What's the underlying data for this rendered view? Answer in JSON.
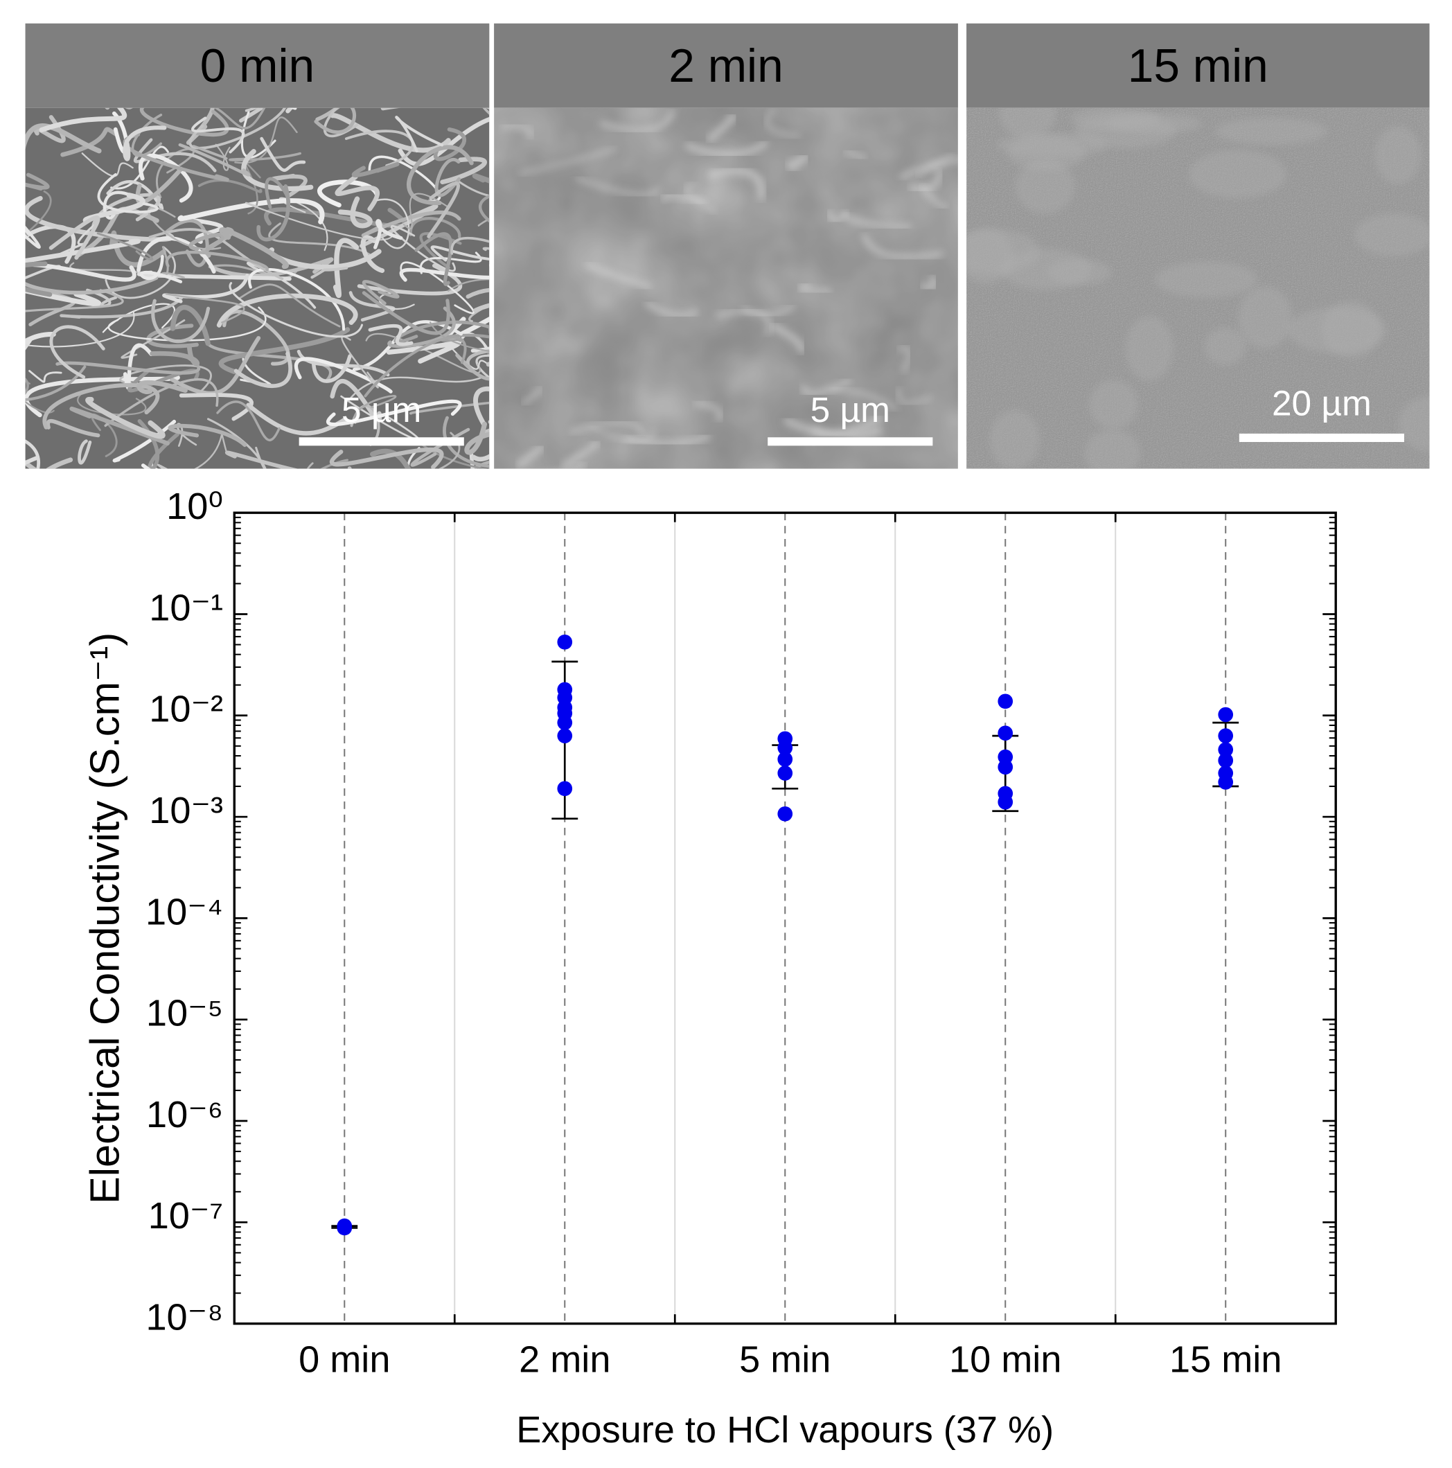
{
  "panels": [
    {
      "title": "0 min",
      "scale_bar": "5 µm"
    },
    {
      "title": "2 min",
      "scale_bar": "5 µm"
    },
    {
      "title": "15 min",
      "scale_bar": "20 µm"
    }
  ],
  "chart_data": {
    "type": "scatter",
    "xlabel": "Exposure to HCl vapours (37 %)",
    "ylabel": "Electrical Conductivity (S.cm⁻¹)",
    "categories": [
      "0 min",
      "2 min",
      "5 min",
      "10 min",
      "15 min"
    ],
    "values": [
      [
        9e-08,
        8.8e-08,
        9.2e-08
      ],
      [
        0.053,
        0.018,
        0.015,
        0.012,
        0.0105,
        0.0085,
        0.0063,
        0.0019
      ],
      [
        0.0059,
        0.0048,
        0.0037,
        0.0027,
        0.00107
      ],
      [
        0.0138,
        0.0067,
        0.0039,
        0.0031,
        0.0017,
        0.0014
      ],
      [
        0.0102,
        0.0063,
        0.0046,
        0.0036,
        0.0027,
        0.0022
      ]
    ],
    "whisker_low": [
      8.8e-08,
      0.00096,
      0.0019,
      0.00114,
      0.002
    ],
    "whisker_high": [
      9.2e-08,
      0.034,
      0.0051,
      0.0063,
      0.0085
    ],
    "color": "#0000ee",
    "log_y": true,
    "ylim": [
      1e-08,
      1
    ],
    "yticks": [
      {
        "value": 1e-08,
        "label": "10⁻⁸"
      },
      {
        "value": 1e-07,
        "label": "10⁻⁷"
      },
      {
        "value": 1e-06,
        "label": "10⁻⁶"
      },
      {
        "value": 1e-05,
        "label": "10⁻⁵"
      },
      {
        "value": 0.0001,
        "label": "10⁻⁴"
      },
      {
        "value": 0.001,
        "label": "10⁻³"
      },
      {
        "value": 0.01,
        "label": "10⁻²"
      },
      {
        "value": 0.1,
        "label": "10⁻¹"
      },
      {
        "value": 1,
        "label": "10⁰"
      }
    ]
  }
}
